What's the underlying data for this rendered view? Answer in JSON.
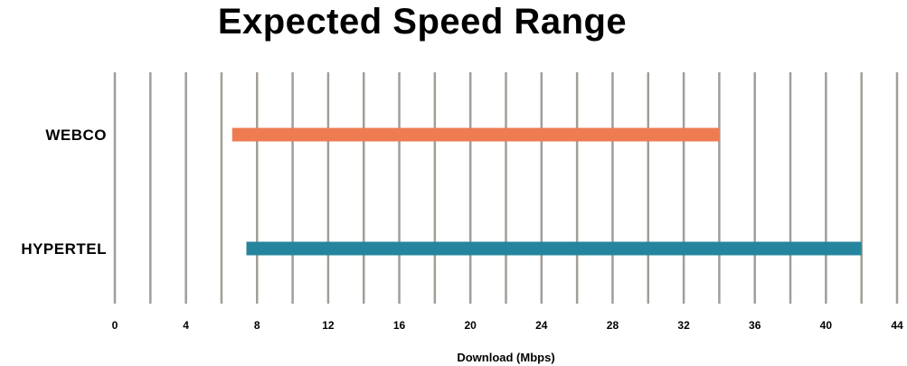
{
  "chart_data": {
    "type": "bar",
    "subtype": "horizontal-range-bars",
    "title": "Expected Speed Range",
    "xlabel": "Download (Mbps)",
    "xlim": [
      0,
      44
    ],
    "grid_step": 2,
    "tick_step": 4,
    "tick_labels": [
      "0",
      "4",
      "8",
      "12",
      "16",
      "20",
      "24",
      "28",
      "32",
      "36",
      "40",
      "44"
    ],
    "categories": [
      "WEBCO",
      "HYPERTEL"
    ],
    "series": [
      {
        "name": "WEBCO",
        "range_start": 6.6,
        "range_end": 34,
        "color": "#EF7B52"
      },
      {
        "name": "HYPERTEL",
        "range_start": 7.4,
        "range_end": 42,
        "color": "#26859E"
      }
    ],
    "grid_on": true,
    "legend": "none",
    "colors": {
      "grid": "#A29D97",
      "text": "#000000",
      "background": "#FFFFFF"
    }
  }
}
